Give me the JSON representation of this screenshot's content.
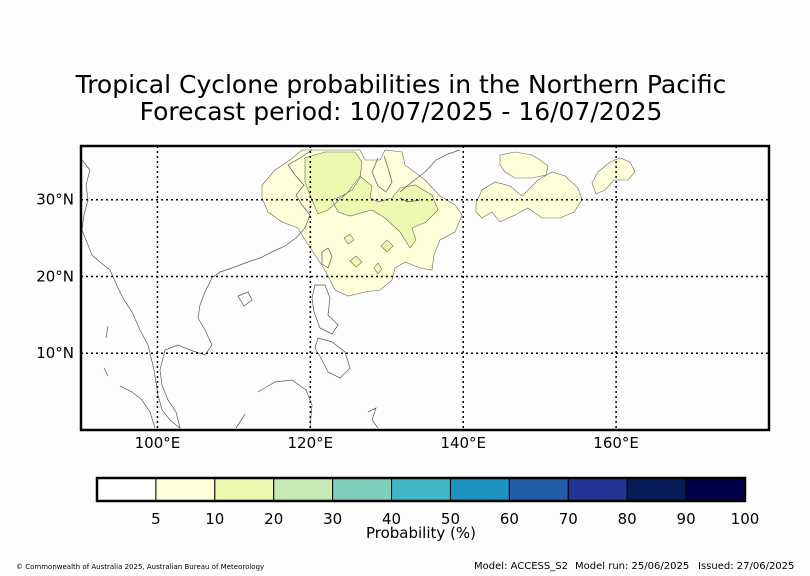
{
  "title_line1": "Tropical Cyclone probabilities in the Northern Pacific",
  "title_line2": "Forecast period: 10/07/2025 - 16/07/2025",
  "map": {
    "lon_range": [
      90,
      180
    ],
    "lat_range": [
      0,
      37
    ],
    "lon_ticks": [
      {
        "value": 100,
        "label": "100°E"
      },
      {
        "value": 120,
        "label": "120°E"
      },
      {
        "value": 140,
        "label": "140°E"
      },
      {
        "value": 160,
        "label": "160°E"
      }
    ],
    "lat_ticks": [
      {
        "value": 10,
        "label": "10°N"
      },
      {
        "value": 20,
        "label": "20°N"
      },
      {
        "value": 30,
        "label": "30°N"
      }
    ],
    "gridlines": "dotted"
  },
  "colorbar": {
    "title": "Probability (%)",
    "ticks": [
      "5",
      "10",
      "20",
      "30",
      "40",
      "50",
      "60",
      "70",
      "80",
      "90",
      "100"
    ],
    "colors": [
      "#ffffff",
      "#ffffd9",
      "#edf8b1",
      "#c7e9b4",
      "#7fcdbb",
      "#41b6c4",
      "#1d91c0",
      "#225ea8",
      "#253494",
      "#081d58",
      "#00004a"
    ]
  },
  "footer": {
    "copyright": "© Commonwealth of Australia 2025, Australian Bureau of Meteorology",
    "model": "Model: ACCESS_S2",
    "model_run": "Model run: 25/06/2025",
    "issued": "Issued: 27/06/2025"
  }
}
